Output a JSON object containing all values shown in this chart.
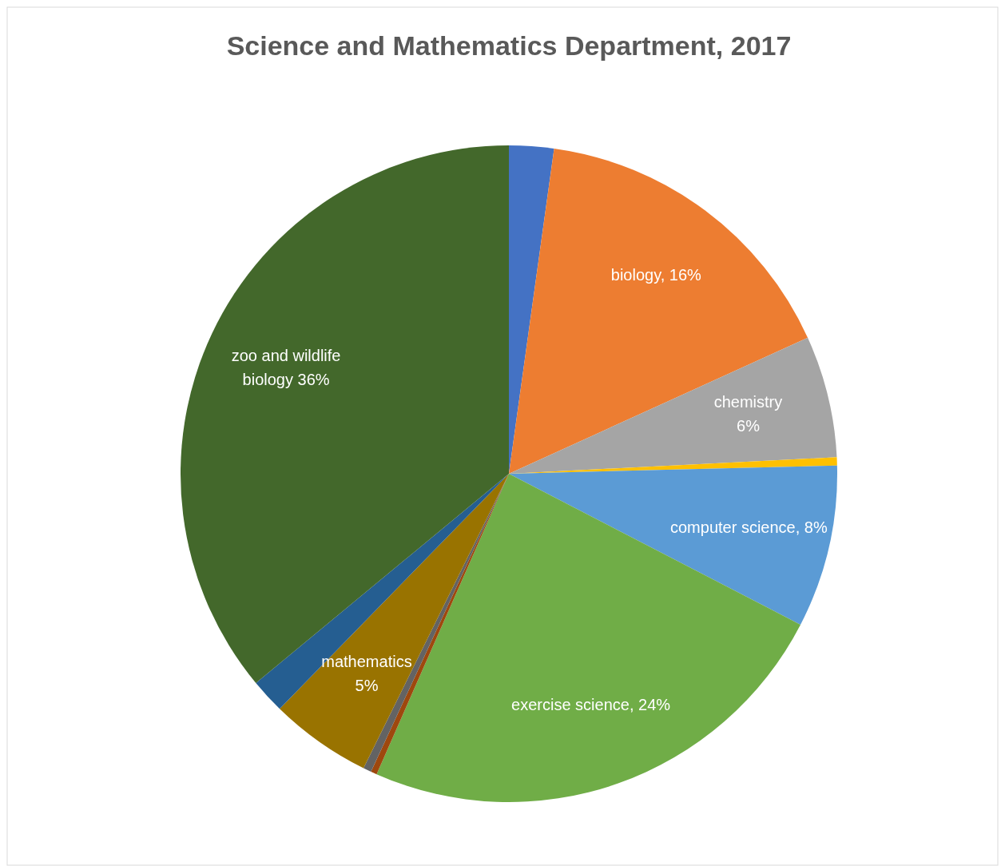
{
  "chart_data": {
    "type": "pie",
    "title": "Science and Mathematics Department, 2017",
    "categories": [
      null,
      "biology",
      "chemistry",
      null,
      "computer science",
      "exercise science",
      null,
      null,
      "mathematics",
      null,
      "zoo and wildlife biology"
    ],
    "values": [
      2.2,
      16,
      6,
      0.4,
      8,
      24,
      0.3,
      0.4,
      5,
      1.7,
      36
    ],
    "colors": [
      "#4472c4",
      "#ed7d31",
      "#a5a5a5",
      "#ffc000",
      "#5b9bd5",
      "#70ad47",
      "#9e480e",
      "#636363",
      "#997300",
      "#255e91",
      "#43682b"
    ],
    "value_labels": [
      null,
      "16%",
      "6%",
      null,
      "8%",
      "24%",
      null,
      null,
      "5%",
      null,
      "36%"
    ]
  }
}
